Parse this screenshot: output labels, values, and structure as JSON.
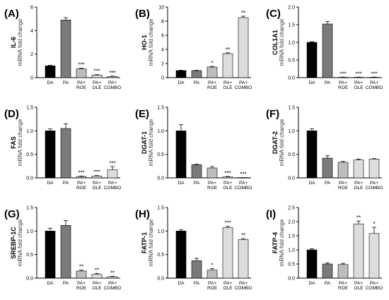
{
  "colors": {
    "black": "#000000",
    "dark_gray": "#7a7a7a",
    "mid_gray": "#bdbdbd",
    "light_gray": "#dcdcdc",
    "axis": "#000000"
  },
  "chart_data": [
    {
      "type": "bar",
      "panel_label": "(A)",
      "gene": "IL-6",
      "ylabel": "mRNA fold change",
      "ylim": [
        0,
        6
      ],
      "yticks": [
        "0",
        "2",
        "4",
        "6"
      ],
      "categories": [
        "DA",
        "PA",
        "PA+ ROE",
        "PA+ OLE",
        "PA+ COMBO"
      ],
      "values": [
        1.0,
        4.9,
        0.75,
        0.22,
        0.1
      ],
      "errors": [
        0.05,
        0.2,
        0.05,
        0.04,
        0.03
      ],
      "significance": [
        "",
        "",
        "***",
        "***",
        "***"
      ]
    },
    {
      "type": "bar",
      "panel_label": "(B)",
      "gene": "HO-1",
      "ylabel": "mRNA fold change",
      "ylim": [
        0,
        10
      ],
      "yticks": [
        "0",
        "2",
        "4",
        "6",
        "8",
        "10"
      ],
      "categories": [
        "DA",
        "PA",
        "PA+ ROE",
        "PA+ OLE",
        "PA+ COMBO"
      ],
      "values": [
        1.0,
        1.0,
        1.5,
        3.4,
        8.5
      ],
      "errors": [
        0.05,
        0.05,
        0.1,
        0.12,
        0.2
      ],
      "significance": [
        "",
        "",
        "*",
        "**",
        "**"
      ]
    },
    {
      "type": "bar",
      "panel_label": "(C)",
      "gene": "COL1A1",
      "ylabel": "mRNA fold change",
      "ylim": [
        0,
        2.0
      ],
      "yticks": [
        "0.0",
        "0.5",
        "1.0",
        "1.5",
        "2.0"
      ],
      "categories": [
        "DA",
        "PA",
        "PA+ ROE",
        "PA+ OLE",
        "PA+ COMBO"
      ],
      "values": [
        1.0,
        1.52,
        0.01,
        0.01,
        0.01
      ],
      "errors": [
        0.02,
        0.07,
        0.005,
        0.005,
        0.005
      ],
      "significance": [
        "",
        "",
        "***",
        "***",
        "***"
      ]
    },
    {
      "type": "bar",
      "panel_label": "(D)",
      "gene": "FAS",
      "ylabel": "mRNA fold change",
      "ylim": [
        0,
        1.5
      ],
      "yticks": [
        "0.0",
        "0.5",
        "1.0",
        "1.5"
      ],
      "categories": [
        "DA",
        "PA",
        "PA+ ROE",
        "PA+ OLE",
        "PA+ COMBO"
      ],
      "values": [
        1.0,
        1.05,
        0.03,
        0.04,
        0.17
      ],
      "errors": [
        0.04,
        0.1,
        0.01,
        0.01,
        0.07
      ],
      "significance": [
        "",
        "",
        "***",
        "***",
        "***"
      ]
    },
    {
      "type": "bar",
      "panel_label": "(E)",
      "gene": "DGAT-1",
      "ylabel": "mRNA fold change",
      "ylim": [
        0,
        1.5
      ],
      "yticks": [
        "0.0",
        "0.5",
        "1.0",
        "1.5"
      ],
      "categories": [
        "DA",
        "PA",
        "PA+ ROE",
        "PA+ OLE",
        "PA+ COMBO"
      ],
      "values": [
        1.0,
        0.28,
        0.21,
        0.02,
        0.0
      ],
      "errors": [
        0.13,
        0.01,
        0.03,
        0.01,
        0.005
      ],
      "significance": [
        "",
        "",
        "",
        "***",
        "***"
      ]
    },
    {
      "type": "bar",
      "panel_label": "(F)",
      "gene": "DGAT-2",
      "ylabel": "mRNA fold change",
      "ylim": [
        0,
        1.5
      ],
      "yticks": [
        "0.0",
        "0.5",
        "1.0",
        "1.5"
      ],
      "categories": [
        "DA",
        "PA",
        "PA+ ROE",
        "PA+ OLE",
        "PA+ COMBO"
      ],
      "values": [
        1.0,
        0.42,
        0.33,
        0.38,
        0.4
      ],
      "errors": [
        0.04,
        0.05,
        0.02,
        0.02,
        0.01
      ],
      "significance": [
        "",
        "",
        "",
        "",
        ""
      ]
    },
    {
      "type": "bar",
      "panel_label": "(G)",
      "gene": "SREBP-1C",
      "ylabel": "mRNA fold change",
      "ylim": [
        0,
        1.5
      ],
      "yticks": [
        "0.0",
        "0.5",
        "1.0",
        "1.5"
      ],
      "categories": [
        "DA",
        "PA",
        "PA+ ROE",
        "PA+ OLE",
        "PA+ COMBO"
      ],
      "values": [
        1.0,
        1.12,
        0.15,
        0.08,
        0.03
      ],
      "errors": [
        0.06,
        0.1,
        0.02,
        0.02,
        0.01
      ],
      "significance": [
        "",
        "",
        "**",
        "**",
        "**"
      ]
    },
    {
      "type": "bar",
      "panel_label": "(H)",
      "gene": "FATP-1",
      "ylabel": "mRNA fold change",
      "ylim": [
        0,
        1.5
      ],
      "yticks": [
        "0.0",
        "0.5",
        "1.0",
        "1.5"
      ],
      "categories": [
        "DA",
        "PA",
        "PA+ ROE",
        "PA+ OLE",
        "PA+ COMBO"
      ],
      "values": [
        1.0,
        0.37,
        0.17,
        1.07,
        0.82
      ],
      "errors": [
        0.03,
        0.05,
        0.03,
        0.03,
        0.02
      ],
      "significance": [
        "",
        "",
        "*",
        "***",
        "**"
      ]
    },
    {
      "type": "bar",
      "panel_label": "(I)",
      "gene": "FATP-4",
      "ylabel": "mRNA fold change",
      "ylim": [
        0,
        2.5
      ],
      "yticks": [
        "0.0",
        "0.5",
        "1.0",
        "1.5",
        "2.0",
        "2.5"
      ],
      "categories": [
        "DA",
        "PA",
        "PA+ ROE",
        "PA+ OLE",
        "PA+ COMBO"
      ],
      "values": [
        1.0,
        0.5,
        0.48,
        1.92,
        1.58
      ],
      "errors": [
        0.04,
        0.04,
        0.04,
        0.1,
        0.22
      ],
      "significance": [
        "",
        "",
        "",
        "**",
        "*"
      ]
    }
  ]
}
